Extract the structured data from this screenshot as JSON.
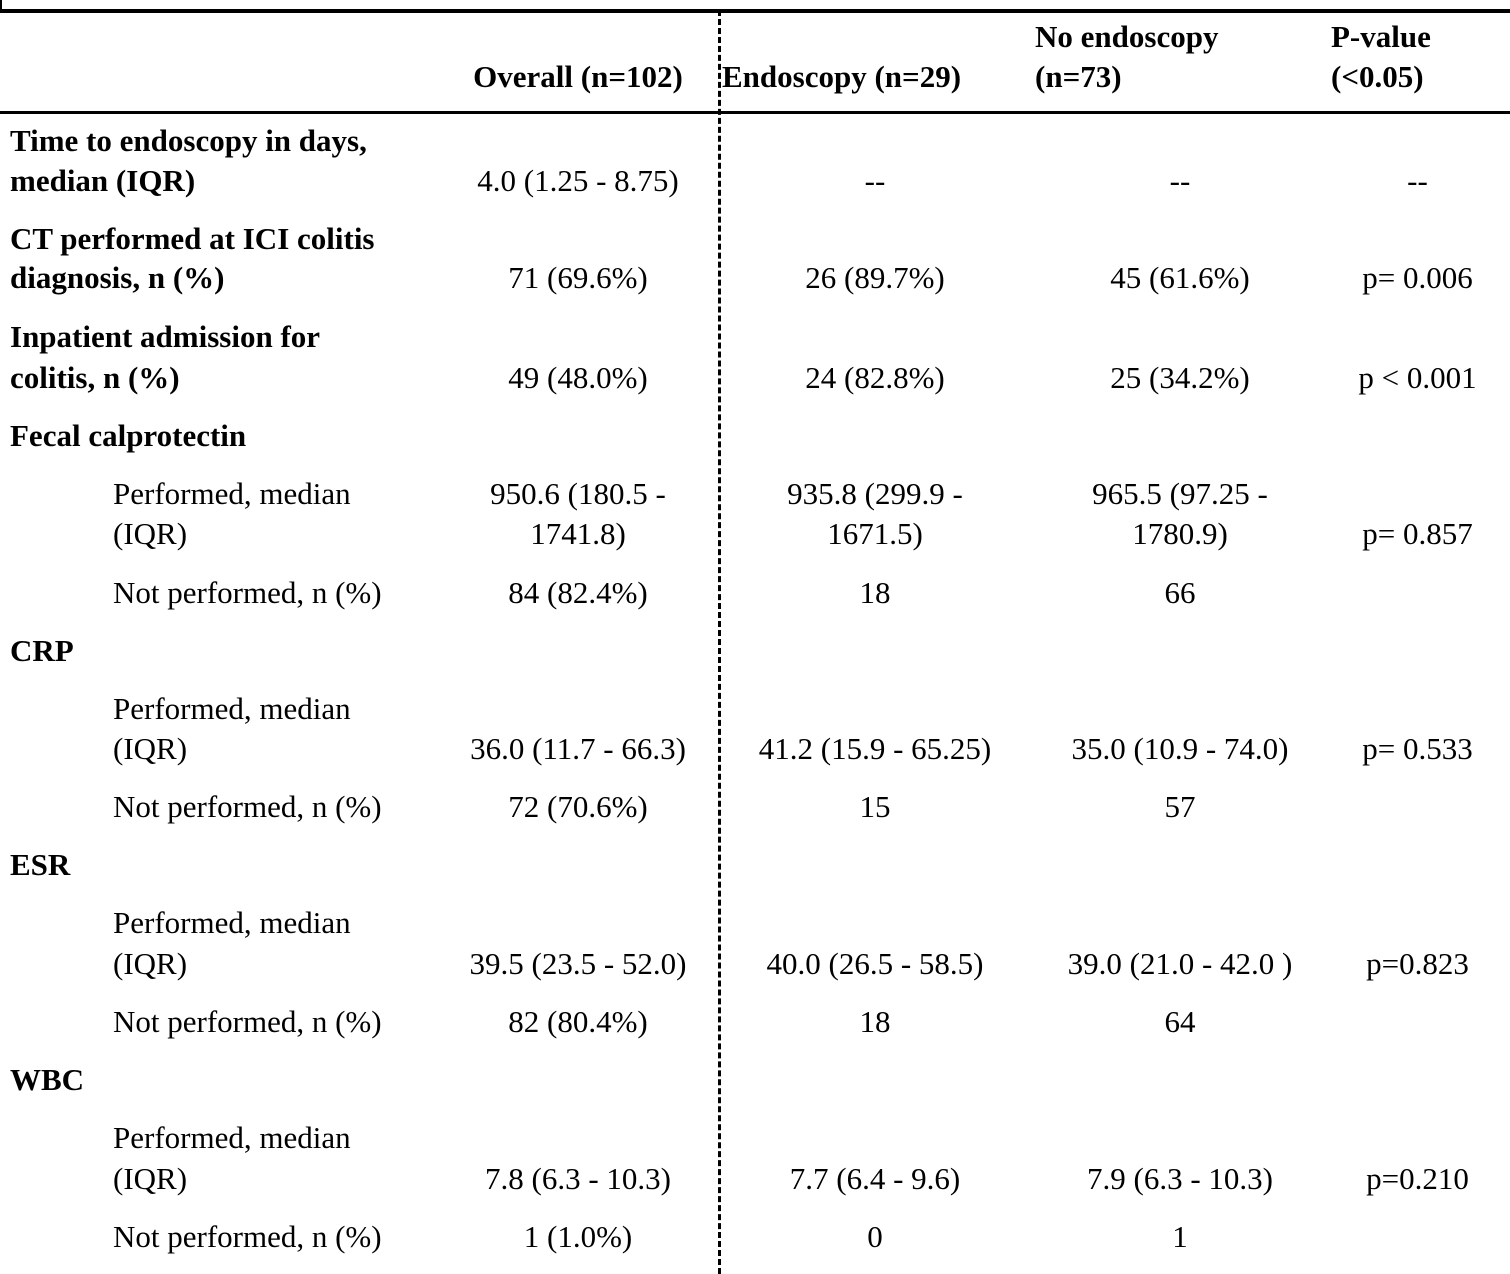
{
  "header": {
    "overall": "Overall (n=102)",
    "endoscopy": "Endoscopy (n=29)",
    "no_endoscopy_l1": "No endoscopy",
    "no_endoscopy_l2": "(n=73)",
    "pvalue_l1": "P-value",
    "pvalue_l2": "(<0.05)"
  },
  "rows": {
    "time": {
      "label_l1": "Time to endoscopy in days,",
      "label_l2": "median (IQR)",
      "overall": "4.0 (1.25 - 8.75)",
      "endoscopy": "--",
      "no_endoscopy": "--",
      "p": "--"
    },
    "ct": {
      "label_l1": "CT performed at ICI colitis",
      "label_l2": "diagnosis, n (%)",
      "overall": "71 (69.6%)",
      "endoscopy": "26 (89.7%)",
      "no_endoscopy": "45 (61.6%)",
      "p": "p= 0.006"
    },
    "inpatient": {
      "label_l1": "Inpatient admission for",
      "label_l2": "colitis, n (%)",
      "overall": "49 (48.0%)",
      "endoscopy": "24 (82.8%)",
      "no_endoscopy": "25 (34.2%)",
      "p": "p < 0.001"
    },
    "fecal": {
      "label": "Fecal calprotectin",
      "performed": {
        "label_l1": "Performed, median",
        "label_l2": "(IQR)",
        "overall_l1": "950.6 (180.5 -",
        "overall_l2": "1741.8)",
        "endoscopy_l1": "935.8 (299.9 -",
        "endoscopy_l2": "1671.5)",
        "no_endoscopy_l1": "965.5 (97.25 -",
        "no_endoscopy_l2": "1780.9)",
        "p": "p= 0.857"
      },
      "not_performed": {
        "label": "Not performed, n (%)",
        "overall": "84 (82.4%)",
        "endoscopy": "18",
        "no_endoscopy": "66"
      }
    },
    "crp": {
      "label": "CRP",
      "performed": {
        "label_l1": "Performed, median",
        "label_l2": "(IQR)",
        "overall": "36.0 (11.7 - 66.3)",
        "endoscopy": "41.2 (15.9 - 65.25)",
        "no_endoscopy": "35.0 (10.9 - 74.0)",
        "p": "p= 0.533"
      },
      "not_performed": {
        "label": "Not performed, n (%)",
        "overall": "72 (70.6%)",
        "endoscopy": "15",
        "no_endoscopy": "57"
      }
    },
    "esr": {
      "label": "ESR",
      "performed": {
        "label_l1": "Performed, median",
        "label_l2": "(IQR)",
        "overall": "39.5 (23.5 - 52.0)",
        "endoscopy": "40.0 (26.5 - 58.5)",
        "no_endoscopy": "39.0 (21.0 - 42.0 )",
        "p": "p=0.823"
      },
      "not_performed": {
        "label": "Not performed, n (%)",
        "overall": "82 (80.4%)",
        "endoscopy": "18",
        "no_endoscopy": "64"
      }
    },
    "wbc": {
      "label": "WBC",
      "performed": {
        "label_l1": "Performed, median",
        "label_l2": "(IQR)",
        "overall": "7.8 (6.3 - 10.3)",
        "endoscopy": "7.7 (6.4 - 9.6)",
        "no_endoscopy": "7.9 (6.3 - 10.3)",
        "p": "p=0.210"
      },
      "not_performed": {
        "label": "Not performed, n (%)",
        "overall": "1 (1.0%)",
        "endoscopy": "0",
        "no_endoscopy": "1"
      }
    }
  }
}
